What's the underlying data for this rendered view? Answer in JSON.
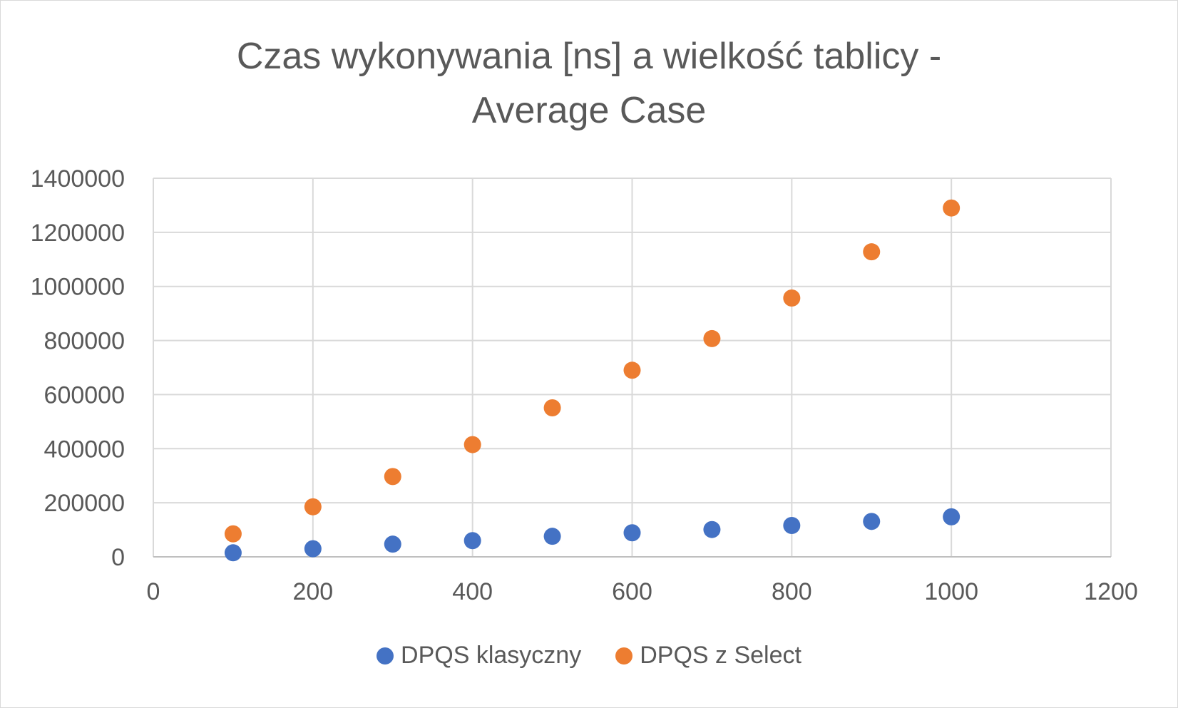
{
  "chart_data": {
    "type": "scatter",
    "title_lines": [
      "Czas wykonywania [ns] a wielkość tablicy -",
      "Average Case"
    ],
    "xlabel": "",
    "ylabel": "",
    "xlim": [
      0,
      1200
    ],
    "ylim": [
      0,
      1400000
    ],
    "x_ticks": [
      "0",
      "200",
      "400",
      "600",
      "800",
      "1000",
      "1200"
    ],
    "y_ticks": [
      "0",
      "200000",
      "400000",
      "600000",
      "800000",
      "1000000",
      "1200000",
      "1400000"
    ],
    "grid": true,
    "legend_position": "bottom",
    "series": [
      {
        "name": "DPQS klasyczny",
        "color": "#4472c4",
        "x": [
          100,
          200,
          300,
          400,
          500,
          600,
          700,
          800,
          900,
          1000
        ],
        "y": [
          15000,
          30000,
          47000,
          60000,
          76000,
          89000,
          101000,
          116000,
          131000,
          148000
        ]
      },
      {
        "name": "DPQS z Select",
        "color": "#ed7d31",
        "x": [
          100,
          200,
          300,
          400,
          500,
          600,
          700,
          800,
          900,
          1000
        ],
        "y": [
          85000,
          185000,
          297000,
          415000,
          551000,
          690000,
          807000,
          957000,
          1128000,
          1290000
        ]
      }
    ]
  }
}
